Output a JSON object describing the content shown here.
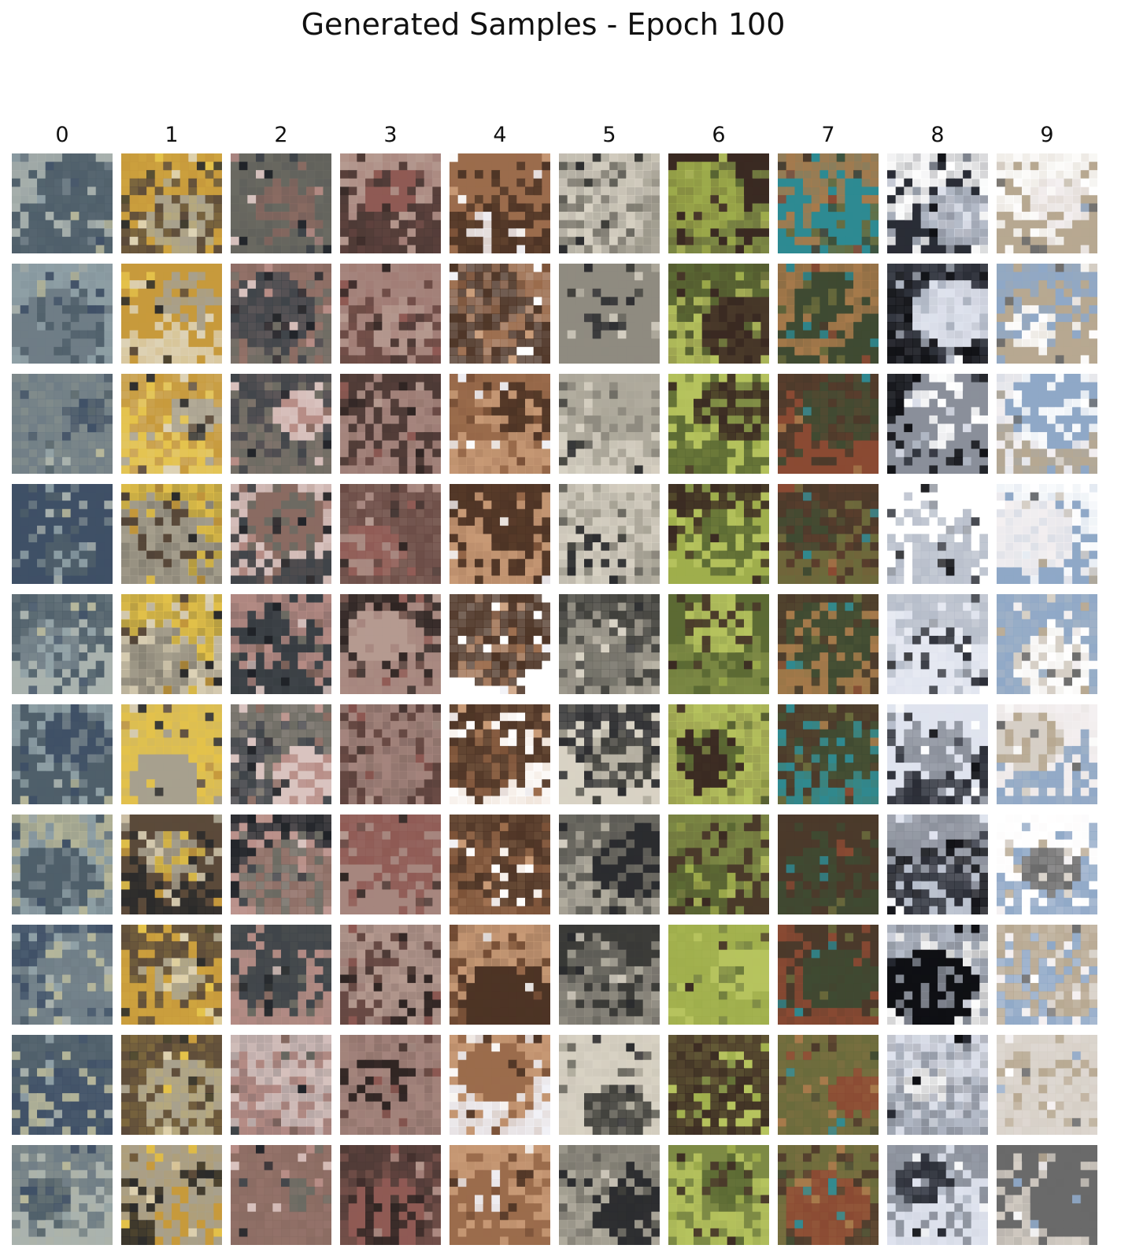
{
  "title": "Generated Samples - Epoch 100",
  "column_labels": [
    "0",
    "1",
    "2",
    "3",
    "4",
    "5",
    "6",
    "7",
    "8",
    "9"
  ],
  "grid": {
    "rows": 10,
    "columns": 10
  },
  "tile_palettes": [
    [
      "#6f7d86",
      "#8fa0a6",
      "#4f5f6a",
      "#a9b2ae",
      "#3f5066",
      "#b7b79a"
    ],
    [
      "#c79a3c",
      "#e4c24a",
      "#5b4a3a",
      "#a7a08e",
      "#2b2b2b",
      "#ddd2b6"
    ],
    [
      "#b78d86",
      "#3f4449",
      "#6b6a62",
      "#d9c3bf",
      "#202328",
      "#8a6b62"
    ],
    [
      "#6a4b45",
      "#8f5a54",
      "#4d3a36",
      "#a6867e",
      "#2f2523",
      "#b59a90"
    ],
    [
      "#7b5238",
      "#f1f1f6",
      "#9b6c4c",
      "#4d3425",
      "#c89a76",
      "#ffffff"
    ],
    [
      "#6c6a62",
      "#8f8b80",
      "#3e3e3a",
      "#b2ad9f",
      "#2b2c2f",
      "#d8d2c4"
    ],
    [
      "#5c6a34",
      "#9fae4c",
      "#3a2a22",
      "#7d8a45",
      "#b6c35e",
      "#4a3a2a"
    ],
    [
      "#6a6b3c",
      "#8a4a33",
      "#3f4a32",
      "#2e8a92",
      "#a77a4b",
      "#4b3a2b"
    ],
    [
      "#dfe3ee",
      "#ffffff",
      "#8a8f9a",
      "#2a2d36",
      "#b5bcc9",
      "#0f1014"
    ],
    [
      "#f4f0f1",
      "#d6cfc6",
      "#8fa8c7",
      "#b7a891",
      "#ffffff",
      "#6a6a6a"
    ]
  ]
}
